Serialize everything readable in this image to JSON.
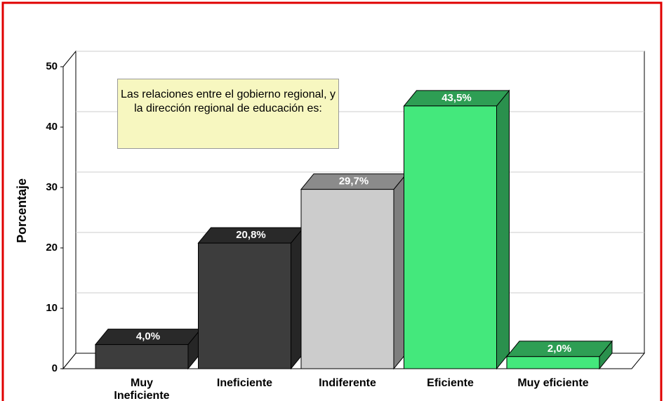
{
  "chart_data": {
    "type": "bar3d",
    "annotation": "Las relaciones entre el gobierno regional, y la dirección regional de educación es:",
    "ylabel": "Porcentaje",
    "categories": [
      "Muy Ineficiente",
      "Ineficiente",
      "Indiferente",
      "Eficiente",
      "Muy eficiente"
    ],
    "values": [
      4.0,
      20.8,
      29.7,
      43.5,
      2.0
    ],
    "value_labels": [
      "4,0%",
      "20,8%",
      "29,7%",
      "43,5%",
      "2,0%"
    ],
    "colors": [
      "#3d3d3d",
      "#3d3d3d",
      "#cccccc",
      "#44e87c",
      "#44e87c"
    ],
    "ylim": [
      0,
      50
    ],
    "yticks": [
      0,
      10,
      20,
      30,
      40,
      50
    ],
    "grid": true
  }
}
